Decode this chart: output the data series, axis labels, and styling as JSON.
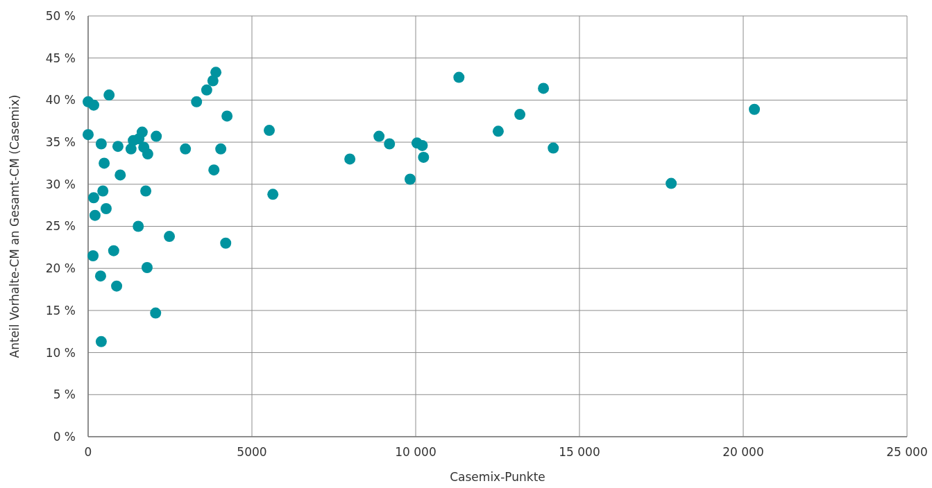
{
  "chart_data": {
    "type": "scatter",
    "xlabel": "Casemix-Punkte",
    "ylabel": "Anteil Vorhalte-CM an Gesamt-CM (Casemix)",
    "xlim": [
      0,
      25000
    ],
    "ylim": [
      0,
      50
    ],
    "xticks": [
      0,
      5000,
      {
        "value": 10000,
        "label": "10 000"
      },
      {
        "value": 15000,
        "label": "15 000"
      },
      {
        "value": 20000,
        "label": "20 000"
      },
      {
        "value": 25000,
        "label": "25 000"
      }
    ],
    "yticks": [
      {
        "value": 0,
        "label": "0 %"
      },
      {
        "value": 5,
        "label": "5 %"
      },
      {
        "value": 10,
        "label": "10 %"
      },
      {
        "value": 15,
        "label": "15 %"
      },
      {
        "value": 20,
        "label": "20 %"
      },
      {
        "value": 25,
        "label": "25 %"
      },
      {
        "value": 30,
        "label": "30 %"
      },
      {
        "value": 35,
        "label": "35 %"
      },
      {
        "value": 40,
        "label": "40 %"
      },
      {
        "value": 45,
        "label": "45 %"
      },
      {
        "value": 50,
        "label": "50 %"
      }
    ],
    "grid": true,
    "marker": "circle",
    "series": [
      {
        "color": "#00939f",
        "x": [
          0,
          170,
          640,
          0,
          400,
          490,
          980,
          910,
          170,
          450,
          210,
          550,
          150,
          780,
          380,
          870,
          400,
          1530,
          2480,
          1800,
          2060,
          1760,
          1820,
          1310,
          1380,
          1550,
          1650,
          1700,
          2080,
          2970,
          3310,
          3620,
          3810,
          3900,
          4240,
          4050,
          3840,
          4200,
          5530,
          5640,
          7990,
          8880,
          9200,
          9830,
          10040,
          10200,
          10240,
          11320,
          12520,
          13180,
          13900,
          14200,
          17800,
          20340
        ],
        "values": [
          39.8,
          39.4,
          40.6,
          35.9,
          34.8,
          32.5,
          31.1,
          34.5,
          28.4,
          29.2,
          26.3,
          27.1,
          21.5,
          22.1,
          19.1,
          17.9,
          11.3,
          25.0,
          23.8,
          20.1,
          14.7,
          29.2,
          33.6,
          34.2,
          35.2,
          35.4,
          36.2,
          34.4,
          35.7,
          34.2,
          39.8,
          41.2,
          42.3,
          43.3,
          38.1,
          34.2,
          31.7,
          23.0,
          36.4,
          28.8,
          33.0,
          35.7,
          34.8,
          30.6,
          34.9,
          34.6,
          33.2,
          42.7,
          36.3,
          38.3,
          41.4,
          34.3,
          30.1,
          38.9
        ]
      }
    ]
  }
}
